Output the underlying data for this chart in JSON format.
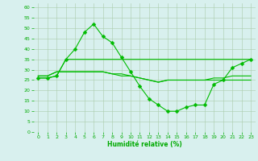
{
  "series": [
    {
      "x": [
        0,
        1,
        2,
        3,
        4,
        5,
        6,
        7,
        8,
        9,
        10,
        11,
        12,
        13,
        14,
        15,
        16,
        17,
        18,
        19,
        20,
        21,
        22,
        23
      ],
      "y": [
        27,
        27,
        29,
        29,
        29,
        29,
        29,
        29,
        28,
        28,
        27,
        26,
        25,
        24,
        25,
        25,
        25,
        25,
        25,
        25,
        25,
        25,
        25,
        25
      ],
      "marker": false
    },
    {
      "x": [
        0,
        1,
        2,
        3,
        4,
        5,
        6,
        7,
        8,
        9,
        10,
        11,
        12,
        13,
        14,
        15,
        16,
        17,
        18,
        19,
        20,
        21,
        22,
        23
      ],
      "y": [
        27,
        27,
        29,
        29,
        29,
        29,
        29,
        29,
        28,
        27,
        27,
        26,
        25,
        24,
        25,
        25,
        25,
        25,
        25,
        26,
        26,
        27,
        27,
        27
      ],
      "marker": false
    },
    {
      "x": [
        0,
        1,
        2,
        3,
        4,
        5,
        6,
        7,
        8,
        9,
        10,
        11,
        12,
        13,
        14,
        15,
        16,
        17,
        18,
        19,
        20,
        21,
        22,
        23
      ],
      "y": [
        26,
        26,
        27,
        35,
        40,
        48,
        52,
        46,
        43,
        36,
        29,
        22,
        16,
        13,
        10,
        10,
        12,
        13,
        13,
        23,
        25,
        31,
        33,
        35
      ],
      "marker": true
    },
    {
      "x": [
        0,
        1,
        2,
        3,
        4,
        5,
        6,
        7,
        8,
        9,
        10,
        11,
        12,
        13,
        14,
        15,
        16,
        17,
        18,
        19,
        20,
        21,
        22,
        23
      ],
      "y": [
        26,
        26,
        27,
        35,
        35,
        35,
        35,
        35,
        35,
        35,
        35,
        35,
        35,
        35,
        35,
        35,
        35,
        35,
        35,
        35,
        35,
        35,
        35,
        35
      ],
      "marker": false
    }
  ],
  "line_color": "#00bb00",
  "marker_color": "#00bb00",
  "marker_size": 2.5,
  "bg_color": "#d8f0ee",
  "grid_color": "#aaccaa",
  "xlabel": "Humidité relative (%)",
  "xlabel_color": "#00aa00",
  "xlabel_fontsize": 5.5,
  "tick_color": "#00aa00",
  "tick_fontsize": 4.5,
  "ylim": [
    0,
    62
  ],
  "xlim": [
    -0.5,
    23.5
  ],
  "yticks": [
    0,
    5,
    10,
    15,
    20,
    25,
    30,
    35,
    40,
    45,
    50,
    55,
    60
  ],
  "xticks": [
    0,
    1,
    2,
    3,
    4,
    5,
    6,
    7,
    8,
    9,
    10,
    11,
    12,
    13,
    14,
    15,
    16,
    17,
    18,
    19,
    20,
    21,
    22,
    23
  ]
}
